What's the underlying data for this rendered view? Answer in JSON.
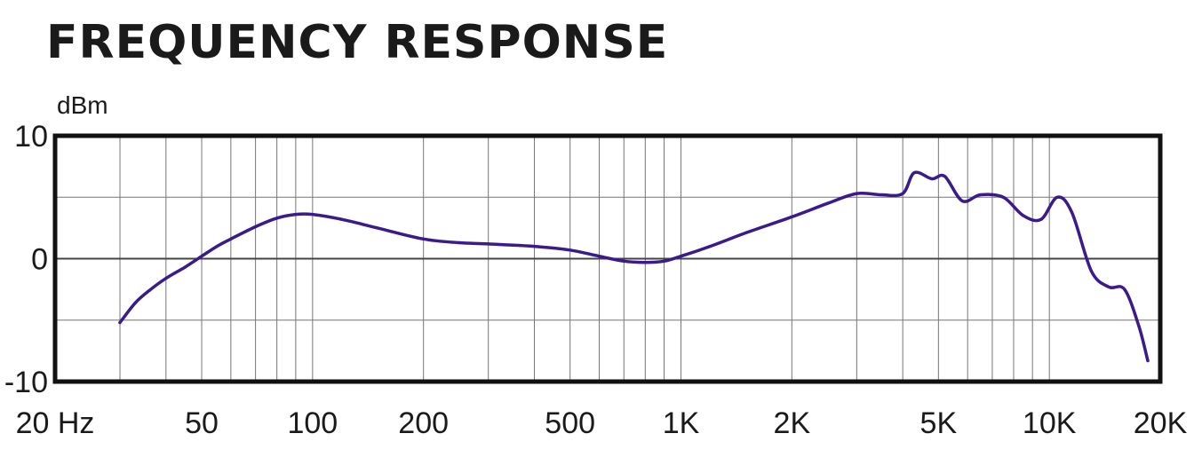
{
  "chart_data": {
    "type": "line",
    "title": "FREQUENCY RESPONSE",
    "ylabel": "dBm",
    "xlabel": "",
    "xscale": "log",
    "xlim": [
      20,
      20000
    ],
    "ylim": [
      -10,
      10
    ],
    "grid": true,
    "x_ticks": [
      {
        "value": 20,
        "label": "20 Hz"
      },
      {
        "value": 50,
        "label": "50"
      },
      {
        "value": 100,
        "label": "100"
      },
      {
        "value": 200,
        "label": "200"
      },
      {
        "value": 500,
        "label": "500"
      },
      {
        "value": 1000,
        "label": "1K"
      },
      {
        "value": 2000,
        "label": "2K"
      },
      {
        "value": 5000,
        "label": "5K"
      },
      {
        "value": 10000,
        "label": "10K"
      },
      {
        "value": 20000,
        "label": "20K"
      }
    ],
    "y_ticks": [
      {
        "value": 10,
        "label": "10"
      },
      {
        "value": 0,
        "label": "0"
      },
      {
        "value": -10,
        "label": "-10"
      }
    ],
    "line_color": "#3a1a8c",
    "series": [
      {
        "x": [
          30,
          33,
          36,
          40,
          45,
          50,
          55,
          60,
          70,
          80,
          90,
          100,
          120,
          150,
          200,
          250,
          300,
          400,
          500,
          600,
          700,
          800,
          900,
          1000,
          1200,
          1500,
          2000,
          2500,
          3000,
          3500,
          4000,
          4300,
          4800,
          5200,
          5800,
          6500,
          7500,
          8500,
          9500,
          10500,
          11500,
          13000,
          14500,
          16000,
          17500,
          18500
        ],
        "y": [
          -5.2,
          -3.6,
          -2.6,
          -1.6,
          -0.7,
          0.2,
          1.0,
          1.6,
          2.6,
          3.3,
          3.6,
          3.6,
          3.2,
          2.5,
          1.6,
          1.3,
          1.2,
          1.0,
          0.7,
          0.2,
          -0.2,
          -0.3,
          -0.2,
          0.2,
          1.0,
          2.1,
          3.4,
          4.5,
          5.3,
          5.2,
          5.3,
          7.0,
          6.5,
          6.7,
          4.7,
          5.2,
          5.0,
          3.5,
          3.2,
          5.0,
          3.8,
          -1.0,
          -2.3,
          -2.5,
          -5.5,
          -8.3
        ]
      }
    ]
  }
}
